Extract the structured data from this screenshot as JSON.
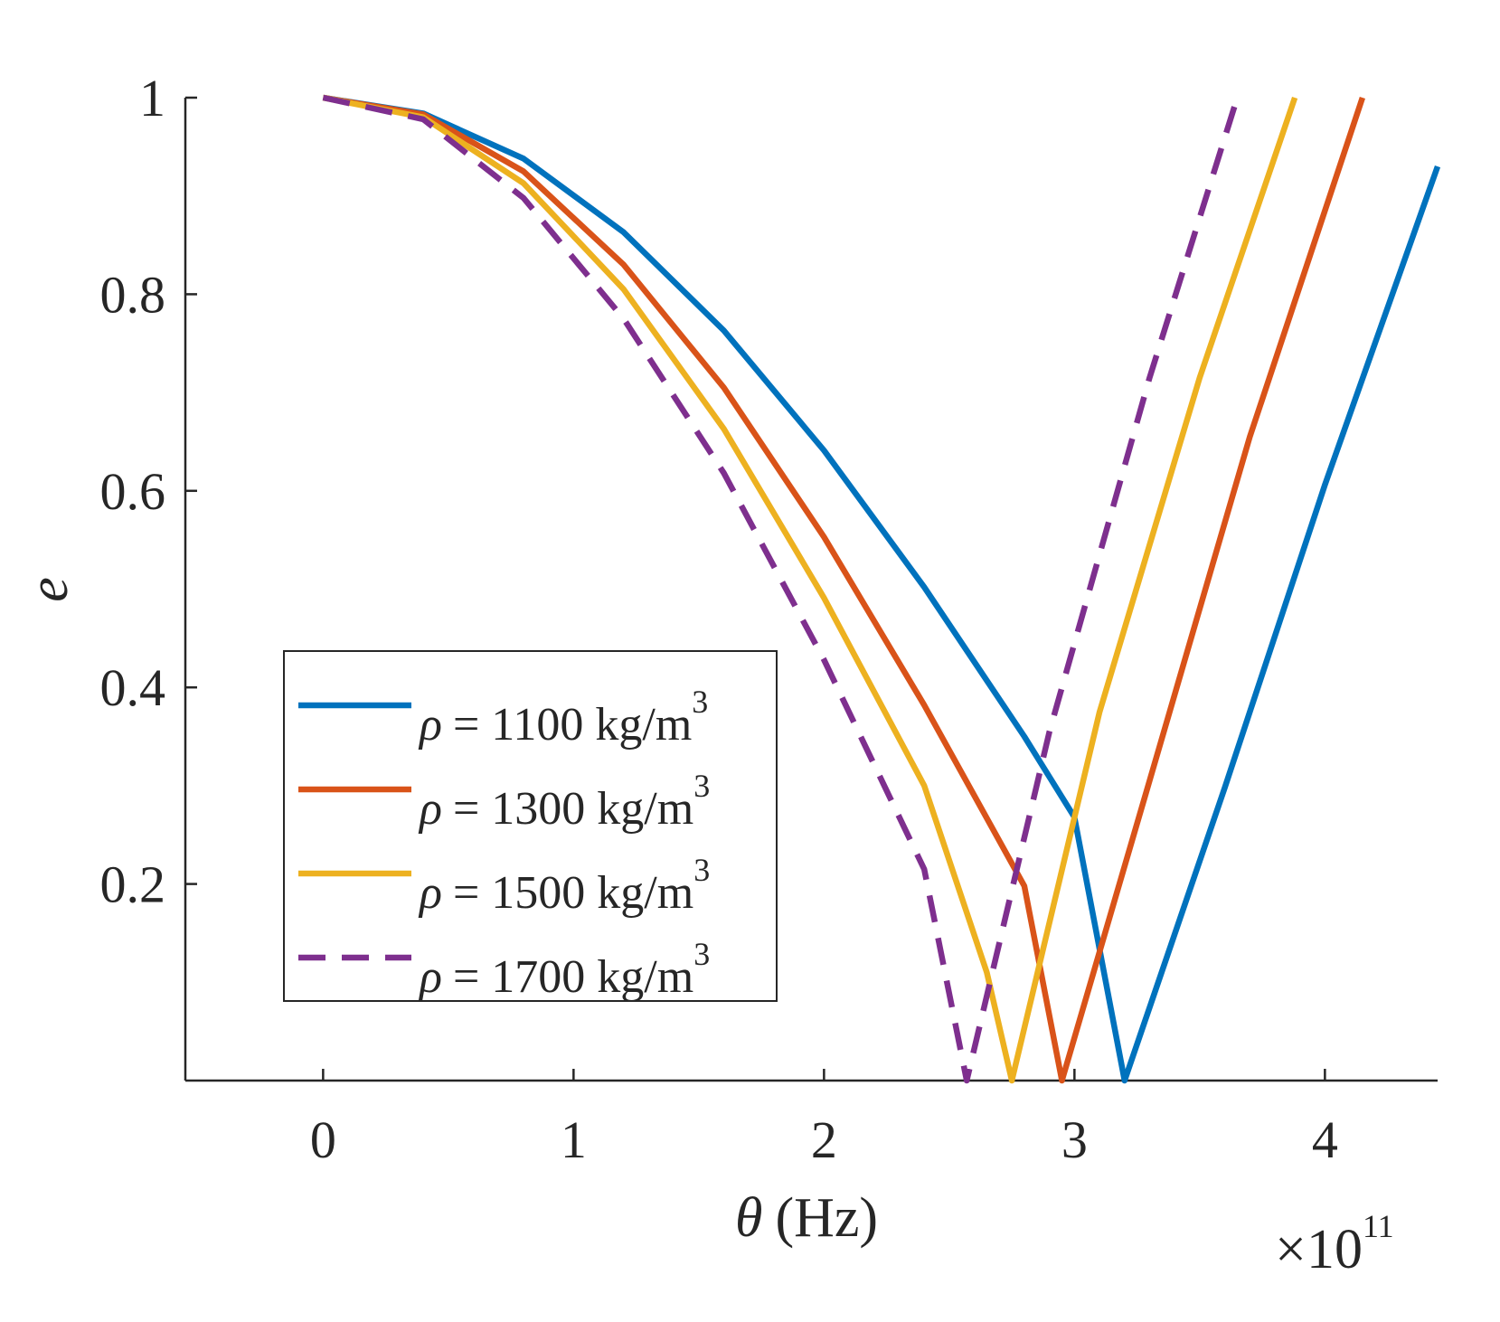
{
  "chart_data": {
    "type": "line",
    "title": "",
    "xlabel": "θ (Hz)",
    "xlabel_symbol": "θ",
    "xlabel_unit": "(Hz)",
    "ylabel": "e",
    "x_exponent": "×10",
    "x_exponent_power": "11",
    "xlim": [
      -0.55,
      4.45
    ],
    "ylim": [
      0.0,
      1.0
    ],
    "xticks": [
      0,
      1,
      2,
      3,
      4
    ],
    "xtick_labels": [
      "0",
      "1",
      "2",
      "3",
      "4"
    ],
    "yticks": [
      0.2,
      0.4,
      0.6,
      0.8,
      1.0
    ],
    "ytick_labels": [
      "0.2",
      "0.4",
      "0.6",
      "0.8",
      "1"
    ],
    "legend_position": "lower-left",
    "series": [
      {
        "name": "ρ = 1100 kg/m3",
        "label_prefix": "ρ",
        "label_body": "= 1100 kg/m",
        "label_sup": "3",
        "color": "#0072BD",
        "dash": "solid",
        "x": [
          0,
          0.4,
          0.8,
          1.2,
          1.6,
          2.0,
          2.4,
          2.8,
          3.0,
          3.2,
          3.6,
          4.0,
          4.45
        ],
        "y": [
          1.0,
          0.984,
          0.938,
          0.863,
          0.763,
          0.641,
          0.502,
          0.35,
          0.268,
          0.0,
          0.298,
          0.606,
          0.93
        ]
      },
      {
        "name": "ρ = 1300 kg/m3",
        "label_prefix": "ρ",
        "label_body": "= 1300 kg/m",
        "label_sup": "3",
        "color": "#D95319",
        "dash": "solid",
        "x": [
          0,
          0.4,
          0.8,
          1.2,
          1.6,
          2.0,
          2.4,
          2.8,
          2.95,
          3.3,
          3.7,
          4.15
        ],
        "y": [
          1.0,
          0.983,
          0.925,
          0.83,
          0.705,
          0.553,
          0.382,
          0.198,
          0.0,
          0.305,
          0.655,
          1.0
        ]
      },
      {
        "name": "ρ = 1500 kg/m3",
        "label_prefix": "ρ",
        "label_body": "= 1500 kg/m",
        "label_sup": "3",
        "color": "#EDB120",
        "dash": "solid",
        "x": [
          0,
          0.4,
          0.8,
          1.2,
          1.6,
          2.0,
          2.4,
          2.65,
          2.75,
          3.1,
          3.5,
          3.88
        ],
        "y": [
          1.0,
          0.98,
          0.913,
          0.805,
          0.663,
          0.491,
          0.3,
          0.11,
          0.0,
          0.375,
          0.715,
          1.0
        ]
      },
      {
        "name": "ρ = 1700 kg/m3",
        "label_prefix": "ρ",
        "label_body": "= 1700 kg/m",
        "label_sup": "3",
        "color": "#7E2F8E",
        "dash": "dashed",
        "x": [
          0,
          0.4,
          0.8,
          1.2,
          1.6,
          2.0,
          2.4,
          2.57,
          2.9,
          3.3,
          3.65
        ],
        "y": [
          1.0,
          0.978,
          0.898,
          0.775,
          0.618,
          0.428,
          0.215,
          0.0,
          0.355,
          0.715,
          1.0
        ]
      }
    ]
  }
}
